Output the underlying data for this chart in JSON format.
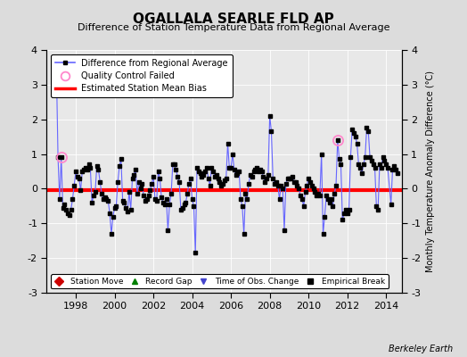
{
  "title": "OGALLALA SEARLE FLD AP",
  "subtitle": "Difference of Station Temperature Data from Regional Average",
  "ylabel_right": "Monthly Temperature Anomaly Difference (°C)",
  "ylim": [
    -3,
    4
  ],
  "yticks": [
    -3,
    -2,
    -1,
    0,
    1,
    2,
    3,
    4
  ],
  "xlim": [
    1996.5,
    2014.8
  ],
  "xticks": [
    1998,
    2000,
    2002,
    2004,
    2006,
    2008,
    2010,
    2012,
    2014
  ],
  "bias_value": -0.05,
  "background_color": "#dcdcdc",
  "plot_bg_color": "#e8e8e8",
  "line_color": "#6666ff",
  "bias_color": "#ff0000",
  "qc_fail_times": [
    1997.25,
    2011.5
  ],
  "qc_fail_values": [
    0.9,
    1.4
  ],
  "watermark": "Berkeley Earth",
  "legend1_labels": [
    "Difference from Regional Average",
    "Quality Control Failed",
    "Estimated Station Mean Bias"
  ],
  "legend2_labels": [
    "Station Move",
    "Record Gap",
    "Time of Obs. Change",
    "Empirical Break"
  ],
  "time_series": [
    1997.0,
    3.5,
    1997.083,
    0.9,
    1997.167,
    -0.3,
    1997.25,
    0.9,
    1997.333,
    -0.55,
    1997.417,
    -0.45,
    1997.5,
    -0.6,
    1997.583,
    -0.7,
    1997.667,
    -0.75,
    1997.75,
    -0.6,
    1997.833,
    -0.3,
    1997.917,
    0.1,
    1998.0,
    0.5,
    1998.083,
    0.35,
    1998.167,
    0.3,
    1998.25,
    -0.05,
    1998.333,
    0.5,
    1998.417,
    0.55,
    1998.5,
    0.6,
    1998.583,
    0.55,
    1998.667,
    0.7,
    1998.75,
    0.6,
    1998.833,
    -0.4,
    1998.917,
    -0.2,
    1999.0,
    -0.1,
    1999.083,
    0.65,
    1999.167,
    0.55,
    1999.25,
    0.2,
    1999.333,
    -0.15,
    1999.417,
    -0.3,
    1999.5,
    -0.25,
    1999.583,
    -0.3,
    1999.667,
    -0.35,
    1999.75,
    -0.7,
    1999.833,
    -1.3,
    1999.917,
    -0.8,
    2000.0,
    -0.55,
    2000.083,
    -0.5,
    2000.167,
    0.2,
    2000.25,
    0.65,
    2000.333,
    0.85,
    2000.417,
    -0.35,
    2000.5,
    -0.4,
    2000.583,
    -0.55,
    2000.667,
    -0.65,
    2000.75,
    -0.1,
    2000.833,
    -0.6,
    2000.917,
    0.3,
    2001.0,
    0.4,
    2001.083,
    0.55,
    2001.167,
    -0.15,
    2001.25,
    0.2,
    2001.333,
    0.0,
    2001.417,
    0.15,
    2001.5,
    -0.2,
    2001.583,
    -0.35,
    2001.667,
    -0.3,
    2001.75,
    -0.2,
    2001.833,
    -0.05,
    2001.917,
    0.15,
    2002.0,
    0.35,
    2002.083,
    -0.3,
    2002.167,
    -0.35,
    2002.25,
    0.5,
    2002.333,
    0.3,
    2002.417,
    -0.25,
    2002.5,
    -0.4,
    2002.583,
    -0.45,
    2002.667,
    -0.3,
    2002.75,
    -1.2,
    2002.833,
    -0.45,
    2002.917,
    -0.15,
    2003.0,
    0.7,
    2003.083,
    0.7,
    2003.167,
    0.55,
    2003.25,
    0.35,
    2003.333,
    0.2,
    2003.417,
    -0.6,
    2003.5,
    -0.55,
    2003.583,
    -0.45,
    2003.667,
    -0.4,
    2003.75,
    -0.15,
    2003.833,
    0.15,
    2003.917,
    0.3,
    2004.0,
    -0.3,
    2004.083,
    -0.5,
    2004.167,
    -1.85,
    2004.25,
    0.6,
    2004.333,
    0.5,
    2004.417,
    0.45,
    2004.5,
    0.35,
    2004.583,
    0.4,
    2004.667,
    0.5,
    2004.75,
    0.6,
    2004.833,
    0.3,
    2004.917,
    0.1,
    2005.0,
    0.6,
    2005.083,
    0.5,
    2005.167,
    0.35,
    2005.25,
    0.4,
    2005.333,
    0.3,
    2005.417,
    0.2,
    2005.5,
    0.1,
    2005.583,
    0.15,
    2005.667,
    0.25,
    2005.75,
    0.3,
    2005.833,
    1.3,
    2005.917,
    0.6,
    2006.0,
    0.6,
    2006.083,
    1.0,
    2006.167,
    0.55,
    2006.25,
    0.4,
    2006.333,
    0.45,
    2006.417,
    0.5,
    2006.5,
    -0.3,
    2006.583,
    -0.5,
    2006.667,
    -1.3,
    2006.75,
    -0.15,
    2006.833,
    -0.3,
    2006.917,
    0.15,
    2007.0,
    0.4,
    2007.083,
    0.35,
    2007.167,
    0.5,
    2007.25,
    0.55,
    2007.333,
    0.6,
    2007.417,
    0.5,
    2007.5,
    0.55,
    2007.583,
    0.5,
    2007.667,
    0.35,
    2007.75,
    0.2,
    2007.833,
    0.3,
    2007.917,
    0.4,
    2008.0,
    2.1,
    2008.083,
    1.65,
    2008.167,
    0.3,
    2008.25,
    0.15,
    2008.333,
    0.2,
    2008.417,
    0.1,
    2008.5,
    -0.3,
    2008.583,
    0.1,
    2008.667,
    0.0,
    2008.75,
    -1.2,
    2008.833,
    0.15,
    2008.917,
    0.3,
    2009.0,
    0.3,
    2009.083,
    0.3,
    2009.167,
    0.35,
    2009.25,
    0.2,
    2009.333,
    0.2,
    2009.417,
    0.1,
    2009.5,
    0.0,
    2009.583,
    -0.2,
    2009.667,
    -0.3,
    2009.75,
    -0.5,
    2009.833,
    -0.1,
    2009.917,
    0.1,
    2010.0,
    0.3,
    2010.083,
    0.2,
    2010.167,
    0.1,
    2010.25,
    0.0,
    2010.333,
    -0.1,
    2010.417,
    -0.2,
    2010.5,
    -0.15,
    2010.583,
    -0.2,
    2010.667,
    1.0,
    2010.75,
    -1.3,
    2010.833,
    -0.8,
    2010.917,
    -0.2,
    2011.0,
    -0.3,
    2011.083,
    -0.4,
    2011.167,
    -0.3,
    2011.25,
    -0.5,
    2011.333,
    -0.15,
    2011.417,
    0.1,
    2011.5,
    1.4,
    2011.583,
    0.85,
    2011.667,
    0.7,
    2011.75,
    -0.9,
    2011.833,
    -0.7,
    2011.917,
    -0.6,
    2012.0,
    -0.7,
    2012.083,
    -0.6,
    2012.167,
    0.9,
    2012.25,
    1.7,
    2012.333,
    1.6,
    2012.417,
    1.5,
    2012.5,
    1.3,
    2012.583,
    0.7,
    2012.667,
    0.6,
    2012.75,
    0.45,
    2012.833,
    0.7,
    2012.917,
    0.9,
    2013.0,
    1.75,
    2013.083,
    1.65,
    2013.167,
    0.9,
    2013.25,
    0.8,
    2013.333,
    0.7,
    2013.417,
    0.6,
    2013.5,
    -0.5,
    2013.583,
    -0.6,
    2013.667,
    0.7,
    2013.75,
    0.6,
    2013.833,
    0.9,
    2013.917,
    0.8,
    2014.0,
    0.7,
    2014.083,
    0.6,
    2014.25,
    -0.45,
    2014.333,
    0.55,
    2014.417,
    0.65,
    2014.5,
    0.55,
    2014.583,
    0.45
  ]
}
